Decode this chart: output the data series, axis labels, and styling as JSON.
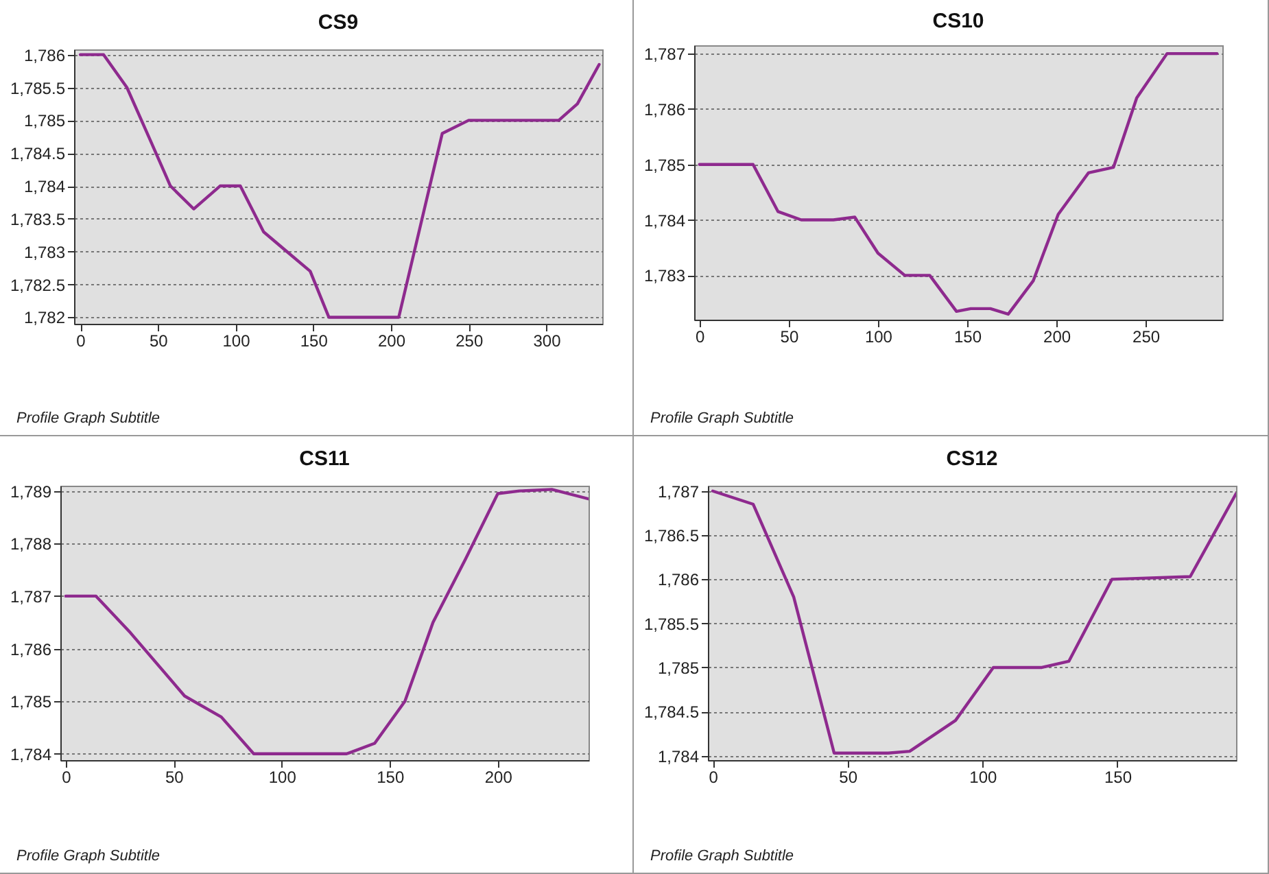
{
  "chart_data": [
    {
      "type": "line",
      "title": "CS9",
      "annotations": [
        "Profile Graph Subtitle"
      ],
      "grid": "y",
      "marker": "none",
      "line_style": "solid",
      "xlim": [
        -4,
        336
      ],
      "ylim": [
        1781.9,
        1786.08
      ],
      "xticks": [
        0,
        50,
        100,
        150,
        200,
        250,
        300
      ],
      "yticks": [
        {
          "value": 1782,
          "label": "1,782"
        },
        {
          "value": 1782.5,
          "label": "1,782.5"
        },
        {
          "value": 1783,
          "label": "1,783"
        },
        {
          "value": 1783.5,
          "label": "1,783.5"
        },
        {
          "value": 1784,
          "label": "1,784"
        },
        {
          "value": 1784.5,
          "label": "1,784.5"
        },
        {
          "value": 1785,
          "label": "1,785"
        },
        {
          "value": 1785.5,
          "label": "1,785.5"
        },
        {
          "value": 1786,
          "label": "1,786"
        }
      ],
      "series": [
        {
          "color": "#8e2a8e",
          "x": [
            0,
            15,
            30,
            45,
            58,
            73,
            90,
            103,
            118,
            133,
            148,
            160,
            205,
            233,
            250,
            308,
            320,
            334
          ],
          "values": [
            1786,
            1786,
            1785.5,
            1784.7,
            1784,
            1783.65,
            1784,
            1784,
            1783.3,
            1783,
            1782.7,
            1782,
            1782,
            1784.8,
            1785,
            1785,
            1785.25,
            1785.85
          ]
        }
      ]
    },
    {
      "type": "line",
      "title": "CS10",
      "annotations": [
        "Profile Graph Subtitle"
      ],
      "grid": "y",
      "marker": "none",
      "line_style": "solid",
      "xlim": [
        -3,
        293
      ],
      "ylim": [
        1782.2,
        1787.15
      ],
      "xticks": [
        0,
        50,
        100,
        150,
        200,
        250
      ],
      "yticks": [
        {
          "value": 1783,
          "label": "1,783"
        },
        {
          "value": 1784,
          "label": "1,784"
        },
        {
          "value": 1785,
          "label": "1,785"
        },
        {
          "value": 1786,
          "label": "1,786"
        },
        {
          "value": 1787,
          "label": "1,787"
        }
      ],
      "series": [
        {
          "color": "#8e2a8e",
          "x": [
            0,
            30,
            44,
            57,
            75,
            87,
            100,
            115,
            129,
            144,
            152,
            163,
            173,
            187,
            201,
            218,
            232,
            245,
            262,
            290
          ],
          "values": [
            1785,
            1785,
            1784.15,
            1784,
            1784,
            1784.05,
            1783.4,
            1783,
            1783,
            1782.35,
            1782.4,
            1782.4,
            1782.3,
            1782.9,
            1784.1,
            1784.85,
            1784.95,
            1786.2,
            1787,
            1787
          ]
        }
      ]
    },
    {
      "type": "line",
      "title": "CS11",
      "annotations": [
        "Profile Graph Subtitle"
      ],
      "grid": "y",
      "marker": "none",
      "line_style": "solid",
      "xlim": [
        -2.5,
        242
      ],
      "ylim": [
        1783.88,
        1789.1
      ],
      "xticks": [
        0,
        50,
        100,
        150,
        200
      ],
      "yticks": [
        {
          "value": 1784,
          "label": "1,784"
        },
        {
          "value": 1785,
          "label": "1,785"
        },
        {
          "value": 1786,
          "label": "1,786"
        },
        {
          "value": 1787,
          "label": "1,787"
        },
        {
          "value": 1788,
          "label": "1,788"
        },
        {
          "value": 1789,
          "label": "1,789"
        }
      ],
      "series": [
        {
          "color": "#8e2a8e",
          "x": [
            0,
            14,
            30,
            55,
            72,
            87,
            130,
            143,
            157,
            170,
            185,
            200,
            210,
            225,
            242
          ],
          "values": [
            1787,
            1787,
            1786.3,
            1785.1,
            1784.7,
            1784,
            1784,
            1784.2,
            1785,
            1786.5,
            1787.7,
            1788.95,
            1789,
            1789.03,
            1788.85
          ]
        }
      ]
    },
    {
      "type": "line",
      "title": "CS12",
      "annotations": [
        "Profile Graph Subtitle"
      ],
      "grid": "y",
      "marker": "none",
      "line_style": "solid",
      "xlim": [
        -1.8,
        194
      ],
      "ylim": [
        1783.95,
        1787.06
      ],
      "xticks": [
        0,
        50,
        100,
        150
      ],
      "yticks": [
        {
          "value": 1784,
          "label": "1,784"
        },
        {
          "value": 1784.5,
          "label": "1,784.5"
        },
        {
          "value": 1785,
          "label": "1,785"
        },
        {
          "value": 1785.5,
          "label": "1,785.5"
        },
        {
          "value": 1786,
          "label": "1,786"
        },
        {
          "value": 1786.5,
          "label": "1,786.5"
        },
        {
          "value": 1787,
          "label": "1,787"
        }
      ],
      "series": [
        {
          "color": "#8e2a8e",
          "x": [
            0,
            15,
            30,
            45,
            65,
            73,
            90,
            104,
            122,
            132,
            148,
            177,
            194
          ],
          "values": [
            1787,
            1786.85,
            1785.8,
            1784.03,
            1784.03,
            1784.05,
            1784.4,
            1785,
            1785,
            1785.07,
            1786,
            1786.03,
            1786.97
          ]
        }
      ]
    }
  ]
}
